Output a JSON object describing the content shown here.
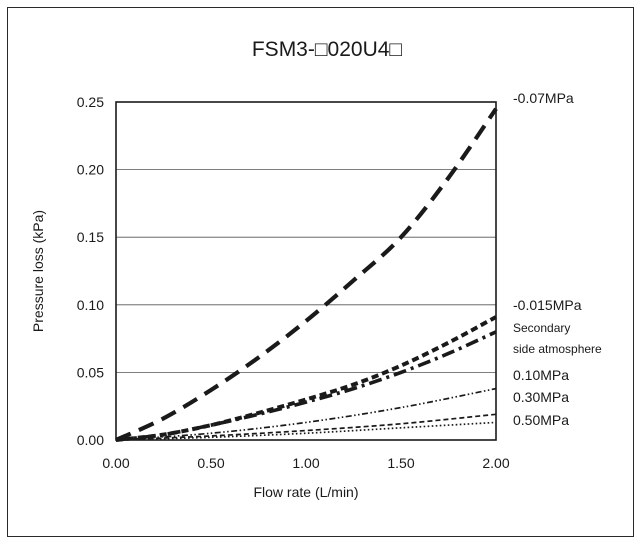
{
  "chart_data": {
    "type": "line",
    "title": "FSM3-□020U4□",
    "xlabel": "Flow rate (L/min)",
    "ylabel": "Pressure loss (kPa)",
    "xlim": [
      0,
      2.0
    ],
    "ylim": [
      0,
      0.25
    ],
    "x_ticks": [
      "0.00",
      "0.50",
      "1.00",
      "1.50",
      "2.00"
    ],
    "y_ticks": [
      "0.00",
      "0.05",
      "0.10",
      "0.15",
      "0.20",
      "0.25"
    ],
    "grid": "horizontal",
    "series": [
      {
        "name": "-0.07MPa",
        "style": "long-dash",
        "x": [
          0,
          0.25,
          0.5,
          0.75,
          1.0,
          1.25,
          1.5,
          1.75,
          2.0
        ],
        "y": [
          0,
          0.016,
          0.037,
          0.061,
          0.088,
          0.118,
          0.15,
          0.194,
          0.245
        ]
      },
      {
        "name": "-0.015MPa",
        "style": "short-dash",
        "x": [
          0,
          0.25,
          0.5,
          0.75,
          1.0,
          1.25,
          1.5,
          1.75,
          2.0
        ],
        "y": [
          0,
          0.004,
          0.011,
          0.02,
          0.03,
          0.041,
          0.055,
          0.072,
          0.091
        ]
      },
      {
        "name": "Secondary side atmosphere",
        "style": "dash-dot",
        "x": [
          0,
          0.25,
          0.5,
          0.75,
          1.0,
          1.25,
          1.5,
          1.75,
          2.0
        ],
        "y": [
          0,
          0.004,
          0.011,
          0.019,
          0.028,
          0.038,
          0.05,
          0.064,
          0.08
        ]
      },
      {
        "name": "0.10MPa",
        "style": "dash-dot-dot",
        "x": [
          0,
          0.5,
          1.0,
          1.5,
          2.0
        ],
        "y": [
          0,
          0.005,
          0.013,
          0.024,
          0.038
        ]
      },
      {
        "name": "0.30MPa",
        "style": "fine-dash",
        "x": [
          0,
          0.5,
          1.0,
          1.5,
          2.0
        ],
        "y": [
          0,
          0.003,
          0.007,
          0.012,
          0.019
        ]
      },
      {
        "name": "0.50MPa",
        "style": "dotted",
        "x": [
          0,
          0.5,
          1.0,
          1.5,
          2.0
        ],
        "y": [
          0,
          0.002,
          0.005,
          0.009,
          0.013
        ]
      }
    ]
  }
}
